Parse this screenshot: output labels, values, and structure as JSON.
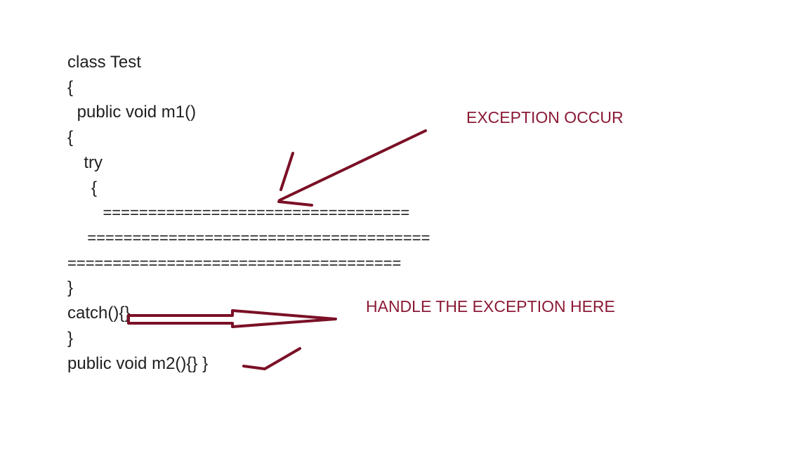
{
  "code": {
    "lines": [
      "class Test",
      "{",
      " public void m1()",
      "{",
      "  try",
      "   {",
      "    ==================================",
      "  ======================================",
      "=====================================",
      "}",
      "catch(){}",
      "}",
      "public void m2(){} }"
    ]
  },
  "annotations": {
    "exception_occur": "EXCEPTION OCCUR",
    "handle_exception": "HANDLE THE EXCEPTION HERE"
  },
  "colors": {
    "code_text": "#1f1f1f",
    "annotation_text": "#8b1a36",
    "ink_stroke": "#7a1026",
    "background": "#ffffff"
  }
}
